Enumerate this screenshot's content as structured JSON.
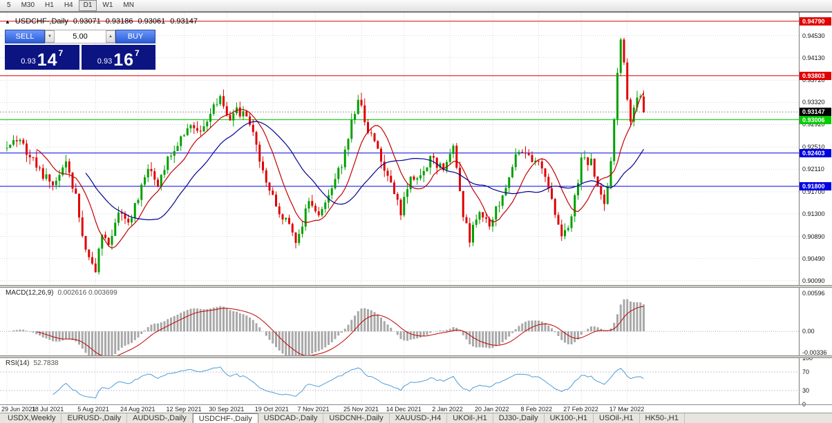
{
  "toolbar": {
    "periods": [
      "5",
      "M30",
      "H1",
      "H4",
      "D1",
      "W1",
      "MN"
    ],
    "active_period": "D1"
  },
  "chart_header": {
    "expand_icon": "▲",
    "symbol": "USDCHF-,Daily",
    "open": "0.93071",
    "high": "0.93186",
    "low": "0.93061",
    "close": "0.93147"
  },
  "trade_panel": {
    "sell_label": "SELL",
    "buy_label": "BUY",
    "volume": "5.00",
    "spin_down": "▼",
    "spin_up": "▲",
    "sell_price": {
      "prefix": "0.93",
      "big": "14",
      "sup": "7"
    },
    "buy_price": {
      "prefix": "0.93",
      "big": "16",
      "sup": "7"
    }
  },
  "indicators": {
    "macd_title": "MACD(12,26,9)",
    "macd_values": "0.002616 0.003699",
    "rsi_title": "RSI(14)",
    "rsi_value": "52.7838"
  },
  "price_axis": {
    "main_labels": [
      "0.94530",
      "0.94130",
      "0.93720",
      "0.93320",
      "0.92920",
      "0.92510",
      "0.92110",
      "0.91700",
      "0.91300",
      "0.90890",
      "0.90490",
      "0.90090"
    ],
    "macd_labels": [
      "0.00596",
      "0.00",
      "-0.00336"
    ],
    "rsi_labels": [
      "100",
      "70",
      "30",
      "0"
    ]
  },
  "hlines": [
    {
      "label": "0.94790",
      "price": 0.9479,
      "color": "#e00000"
    },
    {
      "label": "0.93803",
      "price": 0.93803,
      "color": "#e00000"
    },
    {
      "label": "0.93006",
      "price": 0.93006,
      "color": "#00cc00"
    },
    {
      "label": "0.92403",
      "price": 0.92403,
      "color": "#0000e0"
    },
    {
      "label": "0.91800",
      "price": 0.918,
      "color": "#0000e0"
    }
  ],
  "current_price": {
    "label": "0.93147",
    "value": 0.93147
  },
  "x_axis": {
    "labels": [
      "29 Jun 2021",
      "18 Jul 2021",
      "5 Aug 2021",
      "24 Aug 2021",
      "12 Sep 2021",
      "30 Sep 2021",
      "19 Oct 2021",
      "7 Nov 2021",
      "25 Nov 2021",
      "14 Dec 2021",
      "2 Jan 2022",
      "20 Jan 2022",
      "8 Feb 2022",
      "27 Feb 2022",
      "17 Mar 2022"
    ]
  },
  "tabs": {
    "items": [
      "USDX,Weekly",
      "EURUSD-,Daily",
      "AUDUSD-,Daily",
      "USDCHF-,Daily",
      "USDCAD-,Daily",
      "USDCNH-,Daily",
      "XAUUSD-,H4",
      "UKOil-,H1",
      "DJ30-,Daily",
      "UK100-,H1",
      "USOil-,H1",
      "HK50-,H1"
    ],
    "active": "USDCHF-,Daily"
  },
  "chart_data": {
    "type": "candlestick",
    "symbol": "USDCHF",
    "timeframe": "Daily",
    "last_price": 0.93147,
    "last_ohlc": {
      "open": 0.93071,
      "high": 0.93186,
      "low": 0.93061,
      "close": 0.93147
    },
    "candle_count": 195,
    "main_range": [
      0.9,
      0.9495
    ],
    "macd_range": [
      -0.00385,
      0.0068
    ],
    "rsi_range": [
      0,
      100
    ],
    "date_label_indices": [
      0,
      13,
      27,
      40,
      54,
      67,
      81,
      94,
      108,
      121,
      135,
      148,
      162,
      175,
      189
    ],
    "close_waypoints": [
      [
        0,
        0.9255
      ],
      [
        4,
        0.9265
      ],
      [
        9,
        0.9215
      ],
      [
        14,
        0.918
      ],
      [
        18,
        0.923
      ],
      [
        21,
        0.916
      ],
      [
        24,
        0.906
      ],
      [
        27,
        0.9032
      ],
      [
        29,
        0.9095
      ],
      [
        31,
        0.9075
      ],
      [
        34,
        0.914
      ],
      [
        37,
        0.911
      ],
      [
        40,
        0.916
      ],
      [
        43,
        0.9215
      ],
      [
        46,
        0.9185
      ],
      [
        49,
        0.923
      ],
      [
        53,
        0.927
      ],
      [
        56,
        0.9298
      ],
      [
        59,
        0.9278
      ],
      [
        62,
        0.9315
      ],
      [
        65,
        0.9338
      ],
      [
        68,
        0.9298
      ],
      [
        70,
        0.9318
      ],
      [
        73,
        0.9308
      ],
      [
        76,
        0.9252
      ],
      [
        79,
        0.9192
      ],
      [
        82,
        0.9142
      ],
      [
        85,
        0.9118
      ],
      [
        88,
        0.9076
      ],
      [
        92,
        0.9152
      ],
      [
        95,
        0.9132
      ],
      [
        99,
        0.9172
      ],
      [
        102,
        0.9222
      ],
      [
        105,
        0.9298
      ],
      [
        107,
        0.9338
      ],
      [
        110,
        0.9282
      ],
      [
        114,
        0.9232
      ],
      [
        117,
        0.9182
      ],
      [
        120,
        0.9132
      ],
      [
        123,
        0.9198
      ],
      [
        126,
        0.9192
      ],
      [
        129,
        0.9228
      ],
      [
        133,
        0.9212
      ],
      [
        136,
        0.9248
      ],
      [
        139,
        0.913
      ],
      [
        141,
        0.9086
      ],
      [
        144,
        0.914
      ],
      [
        147,
        0.9112
      ],
      [
        150,
        0.915
      ],
      [
        153,
        0.9198
      ],
      [
        156,
        0.9248
      ],
      [
        159,
        0.9232
      ],
      [
        163,
        0.9212
      ],
      [
        166,
        0.915
      ],
      [
        169,
        0.9092
      ],
      [
        172,
        0.9122
      ],
      [
        175,
        0.9228
      ],
      [
        178,
        0.9222
      ],
      [
        180,
        0.9182
      ],
      [
        182,
        0.9142
      ],
      [
        184,
        0.9222
      ],
      [
        185,
        0.9302
      ],
      [
        186,
        0.9382
      ],
      [
        187,
        0.9438
      ],
      [
        188,
        0.9398
      ],
      [
        189,
        0.9338
      ],
      [
        190,
        0.9298
      ],
      [
        191,
        0.9328
      ],
      [
        192,
        0.9348
      ],
      [
        193,
        0.9338
      ],
      [
        194,
        0.93147
      ]
    ],
    "up_color": "#00a000",
    "down_color": "#e00000",
    "overlays": [
      {
        "name": "MA-fast",
        "type": "sma",
        "period": 10,
        "color": "#c00000"
      },
      {
        "name": "MA-slow",
        "type": "sma",
        "period": 25,
        "color": "#000090"
      }
    ],
    "sub_indicators": [
      {
        "name": "MACD",
        "params": [
          12,
          26,
          9
        ],
        "histogram_color": "#a8a8a8",
        "signal_color": "#c00000",
        "current": [
          0.002616,
          0.003699
        ]
      },
      {
        "name": "RSI",
        "params": [
          14
        ],
        "color": "#4f9bd5",
        "levels": [
          70,
          30
        ],
        "current": 52.7838
      }
    ]
  }
}
